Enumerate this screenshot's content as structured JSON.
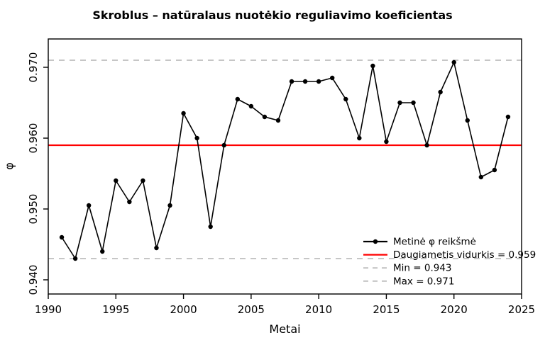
{
  "chart_data": {
    "type": "line",
    "title": "Skroblus – natūralaus nuotėkio reguliavimo koeficientas",
    "xlabel": "Metai",
    "ylabel": "φ",
    "xlim": [
      1990,
      2025
    ],
    "ylim": [
      0.938,
      0.974
    ],
    "x_ticks": [
      1990,
      1995,
      2000,
      2005,
      2010,
      2015,
      2020,
      2025
    ],
    "y_ticks": [
      0.94,
      0.95,
      0.96,
      0.97
    ],
    "grid": "off",
    "legend_position": "bottom-right-inside",
    "series": [
      {
        "name": "Metinė φ reikšmė",
        "color": "#000000",
        "marker": "circle",
        "x": [
          1991,
          1992,
          1993,
          1994,
          1995,
          1996,
          1997,
          1998,
          1999,
          2000,
          2001,
          2002,
          2003,
          2004,
          2005,
          2006,
          2007,
          2008,
          2009,
          2010,
          2011,
          2012,
          2013,
          2014,
          2015,
          2016,
          2017,
          2018,
          2019,
          2020,
          2021,
          2022,
          2023,
          2024
        ],
        "y": [
          0.946,
          0.943,
          0.9505,
          0.944,
          0.954,
          0.951,
          0.954,
          0.9445,
          0.9505,
          0.9635,
          0.96,
          0.9475,
          0.959,
          0.9655,
          0.9645,
          0.963,
          0.9625,
          0.968,
          0.968,
          0.968,
          0.9685,
          0.9655,
          0.96,
          0.9702,
          0.9595,
          0.965,
          0.965,
          0.959,
          0.9665,
          0.9707,
          0.9625,
          0.9545,
          0.9555,
          0.963
        ]
      }
    ],
    "reference_lines": [
      {
        "name": "mean",
        "value": 0.959,
        "style": "solid",
        "color": "#ff0000"
      },
      {
        "name": "min",
        "value": 0.943,
        "style": "dashed",
        "color": "#b3b3b3"
      },
      {
        "name": "max",
        "value": 0.971,
        "style": "dashed",
        "color": "#b3b3b3"
      }
    ],
    "legend": {
      "items": [
        {
          "label": "Metinė φ reikšmė",
          "style": "point-line",
          "color": "#000000"
        },
        {
          "label": "Daugiametis vidurkis = 0.959",
          "style": "solid",
          "color": "#ff0000"
        },
        {
          "label": "Min = 0.943",
          "style": "dashed",
          "color": "#b3b3b3"
        },
        {
          "label": "Max = 0.971",
          "style": "dashed",
          "color": "#b3b3b3"
        }
      ]
    }
  }
}
